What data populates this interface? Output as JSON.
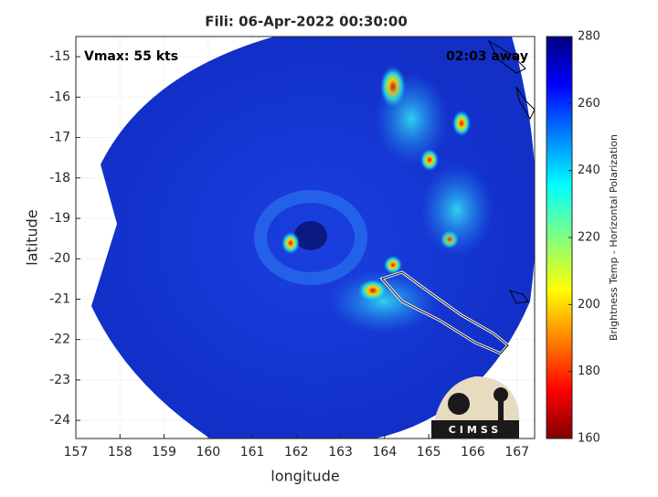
{
  "chart_data": {
    "type": "map",
    "title": "Fili: 06-Apr-2022 00:30:00",
    "annotations": [
      "Vmax: 55 kts",
      "02:03 away"
    ],
    "xlabel": "longitude",
    "ylabel": "latitude",
    "xlim": [
      157,
      167.4
    ],
    "ylim": [
      -24.45,
      -14.5
    ],
    "xticks": [
      157,
      158,
      159,
      160,
      161,
      162,
      163,
      164,
      165,
      166,
      167
    ],
    "yticks": [
      -24,
      -23,
      -22,
      -21,
      -20,
      -19,
      -18,
      -17,
      -16,
      -15
    ],
    "grid": true,
    "colorbar": {
      "label": "Brightness Temp - Horizontal Polarization",
      "lim": [
        160,
        280
      ],
      "ticks": [
        160,
        180,
        200,
        220,
        240,
        260,
        280
      ]
    },
    "logo": "CIMSS"
  }
}
